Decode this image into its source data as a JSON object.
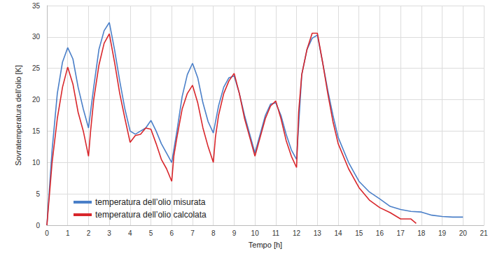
{
  "chart_data": {
    "type": "line",
    "x_label": "Tempo [h]",
    "y_label": "Sovratemperatura dell'olio [K]",
    "xlim": [
      0,
      21
    ],
    "xticks": [
      0,
      1,
      2,
      3,
      4,
      5,
      6,
      7,
      8,
      9,
      10,
      11,
      12,
      13,
      14,
      15,
      16,
      17,
      18,
      19,
      20,
      21
    ],
    "ylim": [
      0,
      35
    ],
    "yticks": [
      0,
      5,
      10,
      15,
      20,
      25,
      30,
      35
    ],
    "grid": true,
    "legend": "lower left",
    "series": [
      {
        "name": "temperatura dell’olio misurata",
        "color": "#4a7fc8",
        "x": [
          0,
          0.25,
          0.5,
          0.75,
          1.0,
          1.25,
          1.5,
          1.75,
          2.0,
          2.25,
          2.5,
          2.75,
          3.0,
          3.25,
          3.5,
          3.75,
          4.0,
          4.25,
          4.5,
          4.75,
          5.0,
          5.25,
          5.5,
          5.75,
          6.0,
          6.25,
          6.5,
          6.75,
          7.0,
          7.25,
          7.5,
          7.75,
          8.0,
          8.25,
          8.5,
          8.75,
          9.0,
          9.25,
          9.5,
          9.75,
          10.0,
          10.25,
          10.5,
          10.75,
          11.0,
          11.25,
          11.5,
          11.75,
          12.0,
          12.25,
          12.5,
          12.75,
          13.0,
          13.25,
          13.5,
          13.75,
          14.0,
          14.5,
          15.0,
          15.5,
          16.0,
          16.5,
          17.0,
          17.5,
          18.0,
          18.5,
          19.0,
          19.5,
          20.0
        ],
        "values": [
          0,
          12,
          21,
          26,
          28.3,
          26.5,
          22,
          18.5,
          15.5,
          22,
          28,
          31,
          32.3,
          28,
          23,
          18.5,
          15,
          14.5,
          15,
          15.5,
          16.7,
          15,
          13,
          11.5,
          10,
          15,
          20.5,
          24,
          25.8,
          23.5,
          19.5,
          16.5,
          14.7,
          19,
          22,
          23.5,
          23.8,
          21,
          17.5,
          14.5,
          11.5,
          14.5,
          17.5,
          19.3,
          19.5,
          17.5,
          14.5,
          12,
          10.5,
          24,
          28,
          29.8,
          30.3,
          26,
          21.5,
          17.5,
          14,
          10,
          7,
          5.3,
          4.2,
          3,
          2.5,
          2.2,
          2.1,
          1.6,
          1.4,
          1.3,
          1.3
        ]
      },
      {
        "name": "temperatura dell’olio calcolata",
        "color": "#d8262b",
        "x": [
          0,
          0.25,
          0.5,
          0.75,
          1.0,
          1.25,
          1.5,
          1.75,
          2.0,
          2.1,
          2.25,
          2.5,
          2.75,
          3.0,
          3.25,
          3.5,
          3.75,
          4.0,
          4.25,
          4.5,
          4.75,
          5.0,
          5.25,
          5.5,
          5.75,
          6.0,
          6.1,
          6.25,
          6.5,
          6.75,
          7.0,
          7.25,
          7.5,
          7.75,
          8.0,
          8.1,
          8.25,
          8.5,
          8.75,
          9.0,
          9.25,
          9.5,
          9.75,
          10.0,
          10.25,
          10.5,
          10.75,
          11.0,
          11.25,
          11.5,
          11.75,
          12.0,
          12.1,
          12.25,
          12.5,
          12.75,
          13.0,
          13.25,
          13.5,
          13.75,
          14.0,
          14.5,
          15.0,
          15.5,
          16.0,
          16.5,
          17.0,
          17.5,
          17.75
        ],
        "values": [
          0,
          10,
          17,
          22,
          25.2,
          22.5,
          18,
          15,
          11,
          15,
          20,
          25.5,
          29,
          30.5,
          26,
          21,
          17,
          13.2,
          14.3,
          14.5,
          15.5,
          15.3,
          13,
          10.5,
          9,
          7,
          11,
          14,
          18.5,
          21,
          22.3,
          19.5,
          15.5,
          12.5,
          10,
          14,
          17.5,
          21,
          23,
          24.2,
          21,
          17,
          14,
          11,
          14,
          17,
          19,
          19.8,
          17,
          13.5,
          11,
          9.2,
          18,
          24,
          28,
          30.6,
          30.6,
          26,
          21,
          16.5,
          13,
          9,
          6,
          4,
          2.8,
          2,
          1,
          1,
          0.3
        ]
      }
    ]
  }
}
